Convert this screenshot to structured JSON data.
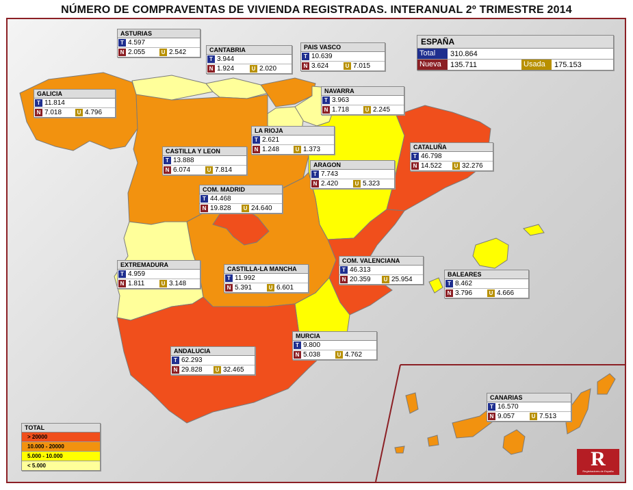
{
  "title": "NÚMERO DE COMPRAVENTAS DE VIVIENDA REGISTRADAS. INTERANUAL 2º TRIMESTRE 2014",
  "colors": {
    "cat_gt20000": "#f04f1c",
    "cat_10000_20000": "#f2920f",
    "cat_5000_10000": "#ffff00",
    "cat_lt5000": "#ffff9a",
    "tag_total": "#1f2f8f",
    "tag_nueva": "#8b1f24",
    "tag_usada": "#b89000"
  },
  "tags": {
    "t": "T",
    "n": "N",
    "u": "U"
  },
  "spain": {
    "name": "ESPAÑA",
    "total_label": "Total",
    "total": "310.864",
    "nueva_label": "Nueva",
    "nueva": "135.711",
    "usada_label": "Usada",
    "usada": "175.153"
  },
  "regions": [
    {
      "name": "ASTURIAS",
      "total": "4.597",
      "nueva": "2.055",
      "usada": "2.542",
      "category": "lt5000"
    },
    {
      "name": "CANTABRIA",
      "total": "3.944",
      "nueva": "1.924",
      "usada": "2.020",
      "category": "lt5000"
    },
    {
      "name": "PAIS VASCO",
      "total": "10.639",
      "nueva": "3.624",
      "usada": "7.015",
      "category": "10000-20000"
    },
    {
      "name": "NAVARRA",
      "total": "3.963",
      "nueva": "1.718",
      "usada": "2.245",
      "category": "lt5000"
    },
    {
      "name": "GALICIA",
      "total": "11.814",
      "nueva": "7.018",
      "usada": "4.796",
      "category": "10000-20000"
    },
    {
      "name": "LA RIOJA",
      "total": "2.621",
      "nueva": "1.248",
      "usada": "1.373",
      "category": "lt5000"
    },
    {
      "name": "CASTILLA Y LEON",
      "total": "13.888",
      "nueva": "6.074",
      "usada": "7.814",
      "category": "10000-20000"
    },
    {
      "name": "CATALUÑA",
      "total": "46.798",
      "nueva": "14.522",
      "usada": "32.276",
      "category": "gt20000"
    },
    {
      "name": "ARAGON",
      "total": "7.743",
      "nueva": "2.420",
      "usada": "5.323",
      "category": "5000-10000"
    },
    {
      "name": "COM. MADRID",
      "total": "44.468",
      "nueva": "19.828",
      "usada": "24.640",
      "category": "gt20000"
    },
    {
      "name": "EXTREMADURA",
      "total": "4.959",
      "nueva": "1.811",
      "usada": "3.148",
      "category": "lt5000"
    },
    {
      "name": "CASTILLA-LA MANCHA",
      "total": "11.992",
      "nueva": "5.391",
      "usada": "6.601",
      "category": "10000-20000"
    },
    {
      "name": "COM. VALENCIANA",
      "total": "46.313",
      "nueva": "20.359",
      "usada": "25.954",
      "category": "gt20000"
    },
    {
      "name": "BALEARES",
      "total": "8.462",
      "nueva": "3.796",
      "usada": "4.666",
      "category": "5000-10000"
    },
    {
      "name": "MURCIA",
      "total": "9.800",
      "nueva": "5.038",
      "usada": "4.762",
      "category": "5000-10000"
    },
    {
      "name": "ANDALUCIA",
      "total": "62.293",
      "nueva": "29.828",
      "usada": "32.465",
      "category": "gt20000"
    },
    {
      "name": "CANARIAS",
      "total": "16.570",
      "nueva": "9.057",
      "usada": "7.513",
      "category": "10000-20000"
    }
  ],
  "legend": {
    "title": "TOTAL",
    "items": [
      {
        "label": "> 20000",
        "color": "#f04f1c"
      },
      {
        "label": "10.000 - 20000",
        "color": "#f2920f"
      },
      {
        "label": "5.000 - 10.000",
        "color": "#ffff00"
      },
      {
        "label": "< 5.000",
        "color": "#ffff9a"
      }
    ]
  },
  "logo": {
    "glyph": "R",
    "caption": "Registradores de España"
  }
}
